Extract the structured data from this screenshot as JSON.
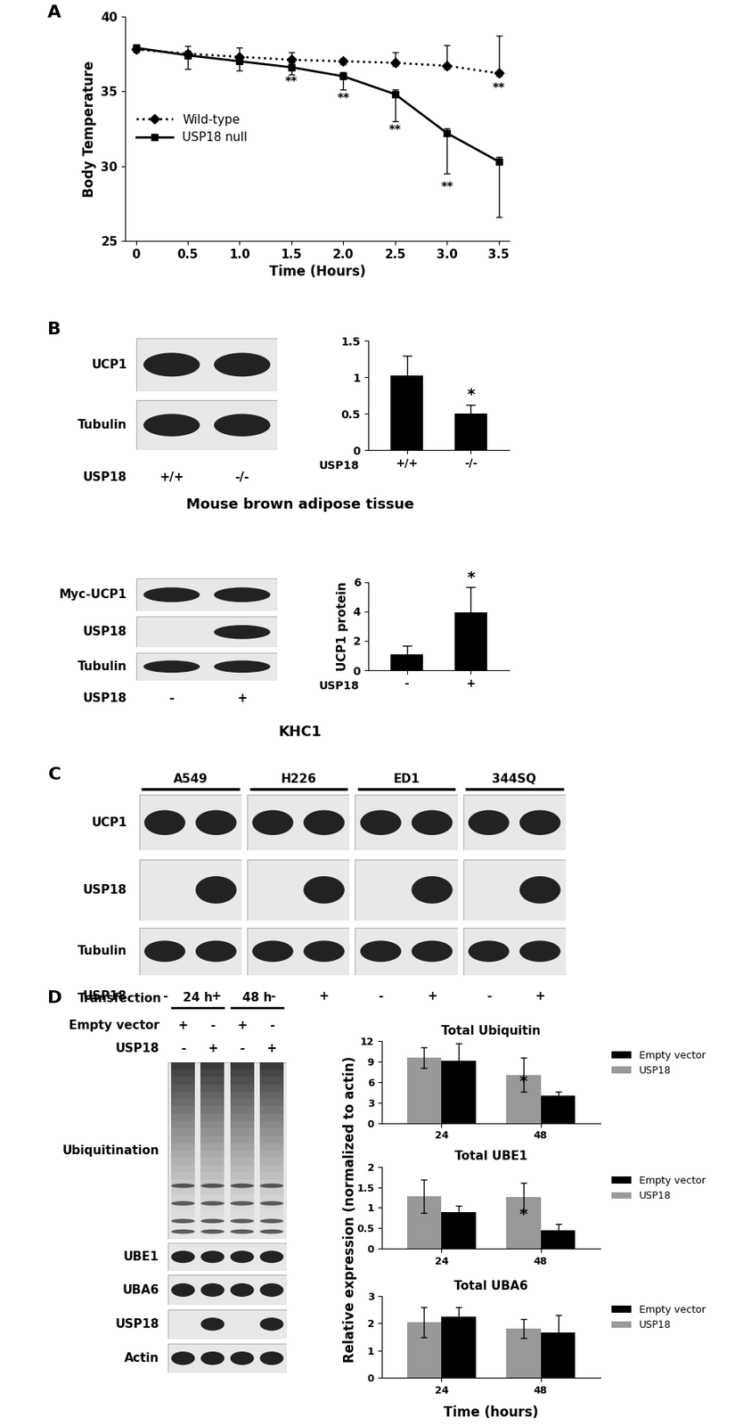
{
  "panel_labels": [
    "A",
    "B",
    "C",
    "D"
  ],
  "chart_data": [
    {
      "type": "line",
      "x": [
        0,
        0.5,
        1.0,
        1.5,
        2.0,
        2.5,
        3.0,
        3.5
      ],
      "xlim": [
        -0.1,
        3.6
      ],
      "xticks": [
        0,
        0.5,
        1.0,
        1.5,
        2.0,
        2.5,
        3.0,
        3.5
      ],
      "ylim": [
        25,
        40
      ],
      "yticks": [
        25,
        30,
        35,
        40
      ],
      "x_label": "Time (Hours)",
      "y_label": "Body Temperature",
      "legend": "center left",
      "series": [
        {
          "name": "Wild-type",
          "color": "#000000",
          "line_style": "dotted",
          "marker": "diamond",
          "values": [
            37.8,
            37.5,
            37.3,
            37.1,
            37.0,
            36.9,
            36.7,
            36.2
          ],
          "errors_below": [
            0.2,
            0.2,
            0.2,
            0.2,
            0.2,
            0.2,
            0.2,
            0.2
          ],
          "errors_above": [
            0.1,
            0.5,
            0.6,
            0.5,
            0.2,
            0.7,
            1.4,
            2.5
          ]
        },
        {
          "name": "USP18 null",
          "color": "#000000",
          "line_style": "solid",
          "marker": "square",
          "values": [
            37.9,
            37.4,
            37.0,
            36.6,
            36.0,
            34.8,
            32.2,
            30.3
          ],
          "errors_below": [
            0.2,
            0.9,
            0.6,
            0.5,
            0.9,
            1.8,
            2.7,
            3.7
          ],
          "errors_above": [
            0.1,
            0.3,
            0.3,
            0.3,
            0.3,
            0.3,
            0.3,
            0.3
          ]
        }
      ],
      "annotations": [
        {
          "text": "**",
          "x": 1.5,
          "y": 35.6
        },
        {
          "text": "**",
          "x": 2.0,
          "y": 34.5
        },
        {
          "text": "**",
          "x": 2.5,
          "y": 32.4
        },
        {
          "text": "**",
          "x": 3.0,
          "y": 28.6
        },
        {
          "text": "**",
          "x": 3.5,
          "y": 35.2
        }
      ]
    },
    {
      "type": "bar",
      "categories": [
        "+/+",
        "-/-"
      ],
      "x_label": "USP18",
      "values": [
        1.03,
        0.5
      ],
      "errors": [
        0.27,
        0.12
      ],
      "color": "#000000",
      "ylim": [
        0,
        1.5
      ],
      "yticks": [
        0,
        0.5,
        1,
        1.5
      ],
      "annotations": [
        {
          "text": "*",
          "x": 1,
          "y": 0.66
        }
      ]
    },
    {
      "type": "bar",
      "categories": [
        "-",
        "+"
      ],
      "x_label": "USP18",
      "y_label": "UCP1 protein",
      "values": [
        1.1,
        3.95
      ],
      "errors": [
        0.55,
        1.7
      ],
      "color": "#000000",
      "ylim": [
        0,
        6
      ],
      "yticks": [
        0,
        2,
        4,
        6
      ],
      "annotations": [
        {
          "text": "*",
          "x": 1,
          "y": 5.75
        }
      ]
    },
    {
      "type": "bar",
      "title": "Total Ubiquitin",
      "categories": [
        "24",
        "48"
      ],
      "legend": "right",
      "ylim": [
        0,
        12
      ],
      "yticks": [
        0,
        3,
        6,
        9,
        12
      ],
      "series": [
        {
          "name": "Empty vector",
          "color": "#000000",
          "values": [
            9.2,
            4.0
          ],
          "errors": [
            2.5,
            0.6
          ]
        },
        {
          "name": "USP18",
          "color": "#999999",
          "values": [
            9.6,
            7.1
          ],
          "errors": [
            1.5,
            2.5
          ]
        }
      ],
      "annotations": [
        {
          "text": "*",
          "x": 0.825,
          "y": 5.0
        }
      ]
    },
    {
      "type": "bar",
      "title": "Total UBE1",
      "categories": [
        "24",
        "48"
      ],
      "legend": "right",
      "ylim": [
        0,
        2
      ],
      "yticks": [
        0,
        0.5,
        1,
        1.5,
        2
      ],
      "series": [
        {
          "name": "Empty vector",
          "color": "#000000",
          "values": [
            0.9,
            0.45
          ],
          "errors": [
            0.15,
            0.15
          ]
        },
        {
          "name": "USP18",
          "color": "#999999",
          "values": [
            1.28,
            1.27
          ],
          "errors": [
            0.4,
            0.33
          ]
        }
      ],
      "annotations": [
        {
          "text": "*",
          "x": 0.825,
          "y": 0.65
        }
      ]
    },
    {
      "type": "bar",
      "title": "Total UBA6",
      "categories": [
        "24",
        "48"
      ],
      "legend": "right",
      "ylim": [
        0,
        3
      ],
      "yticks": [
        0,
        1,
        2,
        3
      ],
      "series": [
        {
          "name": "Empty vector",
          "color": "#000000",
          "values": [
            2.25,
            1.65
          ],
          "errors": [
            0.35,
            0.65
          ]
        },
        {
          "name": "USP18",
          "color": "#999999",
          "values": [
            2.05,
            1.8
          ],
          "errors": [
            0.55,
            0.35
          ]
        }
      ]
    }
  ],
  "panel_D_labels": {
    "y_label": "Relative expression (normalized to actin)",
    "x_label": "Time (hours)"
  },
  "blots": {
    "B_tissue": {
      "rows": [
        "UCP1",
        "Tubulin"
      ],
      "lane_label": "USP18",
      "lanes": [
        "+/+",
        "-/-"
      ],
      "caption": "Mouse brown adipose tissue"
    },
    "B_cells": {
      "rows": [
        "Myc-UCP1",
        "USP18",
        "Tubulin"
      ],
      "lane_label": "USP18",
      "lanes": [
        "-",
        "+"
      ],
      "caption": "KHC1"
    },
    "C": {
      "groups": [
        "A549",
        "H226",
        "ED1",
        "344SQ"
      ],
      "rows": [
        "UCP1",
        "USP18",
        "Tubulin"
      ],
      "lane_label": "USP18",
      "lanes": [
        "-",
        "+"
      ]
    },
    "D": {
      "header": "Transfection",
      "groups": [
        "24 h",
        "48 h"
      ],
      "condition_rows": [
        {
          "label": "Empty vector",
          "lanes": [
            "+",
            "-",
            "+",
            "-"
          ]
        },
        {
          "label": "USP18",
          "lanes": [
            "-",
            "+",
            "-",
            "+"
          ]
        }
      ],
      "rows": [
        "Ubiquitination",
        "UBE1",
        "UBA6",
        "USP18",
        "Actin"
      ]
    }
  }
}
